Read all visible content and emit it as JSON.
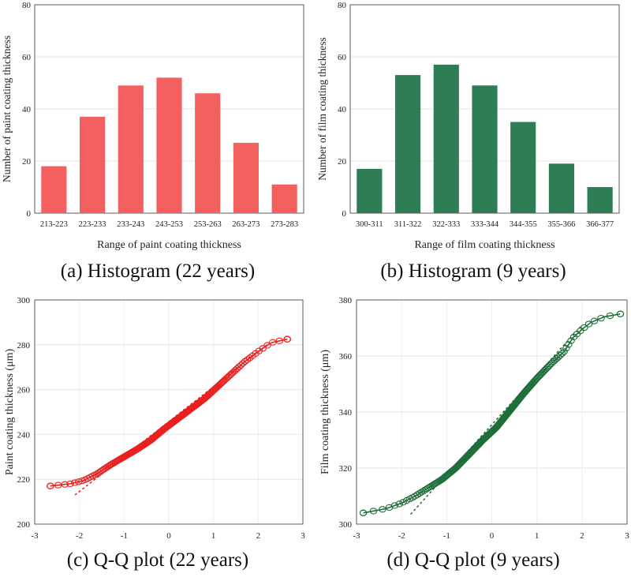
{
  "captions": {
    "a": "(a) Histogram (22 years)",
    "b": "(b) Histogram (9 years)",
    "c": "(c) Q-Q plot (22 years)",
    "d": "(d) Q-Q plot (9 years)"
  },
  "chart_data": [
    {
      "type": "bar",
      "panel": "a",
      "color": "#f4605f",
      "xlabel": "Range of paint coating thickness",
      "ylabel": "Number of paint coating thickness",
      "ylim": [
        0,
        80
      ],
      "yticks": [
        0,
        20,
        40,
        60,
        80
      ],
      "grid": true,
      "categories": [
        "213-223",
        "223-233",
        "233-243",
        "243-253",
        "253-263",
        "263-273",
        "273-283"
      ],
      "values": [
        18,
        37,
        49,
        52,
        46,
        27,
        11
      ]
    },
    {
      "type": "bar",
      "panel": "b",
      "color": "#2e7d55",
      "xlabel": "Range of film coating thickness",
      "ylabel": "Number of film coating thickness",
      "ylim": [
        0,
        80
      ],
      "yticks": [
        0,
        20,
        40,
        60,
        80
      ],
      "grid": true,
      "categories": [
        "300-311",
        "311-322",
        "322-333",
        "333-344",
        "344-355",
        "355-366",
        "366-377"
      ],
      "values": [
        17,
        53,
        57,
        49,
        35,
        19,
        10
      ]
    },
    {
      "type": "scatter",
      "panel": "c",
      "color": "#e8201f",
      "xlabel": "",
      "ylabel": "Paint coating thickness (μm)",
      "xlim": [
        -3,
        3
      ],
      "ylim": [
        200,
        300
      ],
      "xticks": [
        -3,
        -2,
        -1,
        0,
        1,
        2,
        3
      ],
      "yticks": [
        200,
        220,
        240,
        260,
        280,
        300
      ],
      "grid": true,
      "n": 240,
      "quantile_curve": {
        "x": [
          -2.65,
          -2.2,
          -1.9,
          -1.6,
          -1.3,
          -1.0,
          -0.7,
          -0.4,
          -0.1,
          0.2,
          0.5,
          0.8,
          1.1,
          1.4,
          1.7,
          2.0,
          2.3,
          2.65
        ],
        "y": [
          217,
          218,
          219.5,
          222.5,
          226.5,
          230,
          233.5,
          237.5,
          242.5,
          247,
          251.5,
          256,
          261.5,
          267,
          272.5,
          277,
          281,
          282.5
        ]
      },
      "reference_line": {
        "x": [
          -2.1,
          2.2
        ],
        "y": [
          213,
          280
        ]
      }
    },
    {
      "type": "scatter",
      "panel": "d",
      "color": "#1f6e3a",
      "xlabel": "",
      "ylabel": "Film coating thickness (μm)",
      "xlim": [
        -3,
        3
      ],
      "ylim": [
        300,
        380
      ],
      "xticks": [
        -3,
        -2,
        -1,
        0,
        1,
        2,
        3
      ],
      "yticks": [
        300,
        320,
        340,
        360,
        380
      ],
      "grid": true,
      "n": 220,
      "quantile_curve": {
        "x": [
          -2.85,
          -2.35,
          -2.0,
          -1.7,
          -1.4,
          -1.1,
          -0.8,
          -0.5,
          -0.2,
          0.1,
          0.4,
          0.7,
          1.0,
          1.3,
          1.6,
          1.8,
          2.0,
          2.2,
          2.5,
          2.85
        ],
        "y": [
          304,
          305.5,
          307.5,
          310,
          313,
          316,
          320,
          325,
          330,
          334.5,
          340.5,
          346.5,
          352,
          357,
          361.5,
          366.5,
          369.5,
          372,
          374,
          375
        ]
      },
      "reference_line": {
        "x": [
          -1.8,
          2.0
        ],
        "y": [
          303.5,
          371
        ]
      }
    }
  ]
}
